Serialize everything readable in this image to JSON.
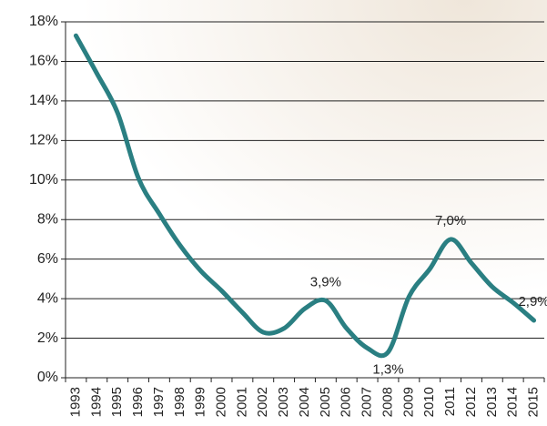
{
  "chart_data": {
    "type": "line",
    "categories": [
      "1993",
      "1994",
      "1995",
      "1996",
      "1997",
      "1998",
      "1999",
      "2000",
      "2001",
      "2002",
      "2003",
      "2004",
      "2005",
      "2006",
      "2007",
      "2008",
      "2009",
      "2010",
      "2011",
      "2012",
      "2013",
      "2014",
      "2015"
    ],
    "series": [
      {
        "color": "#2a7f82",
        "values": [
          17.3,
          15.4,
          13.4,
          10.1,
          8.3,
          6.7,
          5.4,
          4.4,
          3.3,
          2.3,
          2.5,
          3.5,
          3.9,
          2.5,
          1.5,
          1.3,
          4.1,
          5.5,
          7.0,
          5.8,
          4.6,
          3.8,
          2.9
        ],
        "value_labels": [
          null,
          null,
          null,
          null,
          null,
          null,
          null,
          null,
          null,
          null,
          null,
          null,
          "3,9%",
          null,
          null,
          "1,3%",
          null,
          null,
          "7,0%",
          null,
          null,
          null,
          "2,9%"
        ]
      }
    ],
    "ylim": [
      0,
      18
    ],
    "yticks": [
      {
        "value": 0,
        "label": "0%"
      },
      {
        "value": 2,
        "label": "2%"
      },
      {
        "value": 4,
        "label": "4%"
      },
      {
        "value": 6,
        "label": "6%"
      },
      {
        "value": 8,
        "label": "8%"
      },
      {
        "value": 10,
        "label": "10%"
      },
      {
        "value": 12,
        "label": "12%"
      },
      {
        "value": 14,
        "label": "14%"
      },
      {
        "value": 16,
        "label": "16%"
      },
      {
        "value": 18,
        "label": "18%"
      }
    ],
    "grid": true
  }
}
